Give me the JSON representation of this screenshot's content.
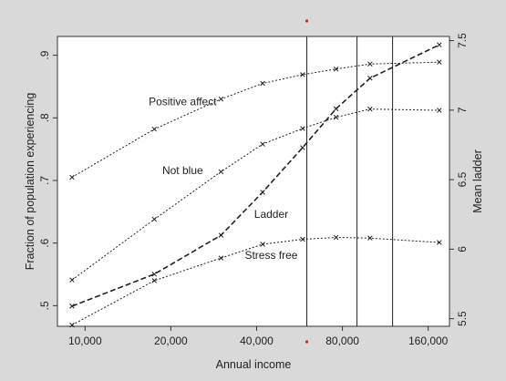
{
  "colors": {
    "background": "#d9d9d9",
    "plot_background": "#ffffff",
    "series_line": "#222222",
    "dot": "#e02020"
  },
  "chart_data": {
    "type": "line",
    "xlabel": "Annual income",
    "ylabel_left": "Fraction of population experiencing",
    "ylabel_right": "Mean ladder",
    "x_scale": "log",
    "xlim": [
      8000,
      190000
    ],
    "x_ticks": [
      {
        "value": 10000,
        "label": "10,000"
      },
      {
        "value": 20000,
        "label": "20,000"
      },
      {
        "value": 40000,
        "label": "40,000"
      },
      {
        "value": 80000,
        "label": "80,000"
      },
      {
        "value": 160000,
        "label": "160,000"
      }
    ],
    "ylim_left": [
      0.467,
      0.93
    ],
    "y_ticks_left": [
      {
        "value": 0.5,
        "label": ".5"
      },
      {
        "value": 0.6,
        "label": ".6"
      },
      {
        "value": 0.7,
        "label": ".7"
      },
      {
        "value": 0.8,
        "label": ".8"
      },
      {
        "value": 0.9,
        "label": ".9"
      }
    ],
    "ylim_right": [
      5.445,
      7.53
    ],
    "y_ticks_right": [
      {
        "value": 5.5,
        "label": "5.5"
      },
      {
        "value": 6,
        "label": "6"
      },
      {
        "value": 6.5,
        "label": "6.5"
      },
      {
        "value": 7,
        "label": "7"
      },
      {
        "value": 7.5,
        "label": "7.5"
      }
    ],
    "vertical_lines": [
      60000,
      90000,
      120000
    ],
    "dots": [
      60000
    ],
    "series": [
      {
        "name": "Positive affect",
        "axis": "left",
        "style": "dotted",
        "x": [
          9000,
          17500,
          30000,
          42000,
          58000,
          76000,
          100000,
          175000
        ],
        "y": [
          0.705,
          0.782,
          0.83,
          0.855,
          0.869,
          0.878,
          0.886,
          0.889
        ]
      },
      {
        "name": "Not blue",
        "axis": "left",
        "style": "dotted",
        "x": [
          9000,
          17500,
          30000,
          42000,
          58000,
          76000,
          100000,
          175000
        ],
        "y": [
          0.541,
          0.638,
          0.714,
          0.758,
          0.783,
          0.801,
          0.814,
          0.812
        ]
      },
      {
        "name": "Stress free",
        "axis": "left",
        "style": "dotted",
        "x": [
          9000,
          17500,
          30000,
          42000,
          58000,
          76000,
          100000,
          175000
        ],
        "y": [
          0.469,
          0.54,
          0.576,
          0.598,
          0.606,
          0.609,
          0.608,
          0.601
        ]
      },
      {
        "name": "Ladder",
        "axis": "right",
        "style": "dashed",
        "x": [
          9000,
          17500,
          30000,
          42000,
          58000,
          76000,
          100000,
          175000
        ],
        "y": [
          5.59,
          5.82,
          6.1,
          6.41,
          6.73,
          7.01,
          7.23,
          7.47
        ]
      }
    ],
    "annotations": [
      {
        "text": "Positive affect",
        "x": 22000,
        "y": 0.82
      },
      {
        "text": "Not blue",
        "x": 22000,
        "y": 0.71
      },
      {
        "text": "Ladder",
        "x": 45000,
        "y": 0.64
      },
      {
        "text": "Stress free",
        "x": 45000,
        "y": 0.575
      }
    ]
  }
}
